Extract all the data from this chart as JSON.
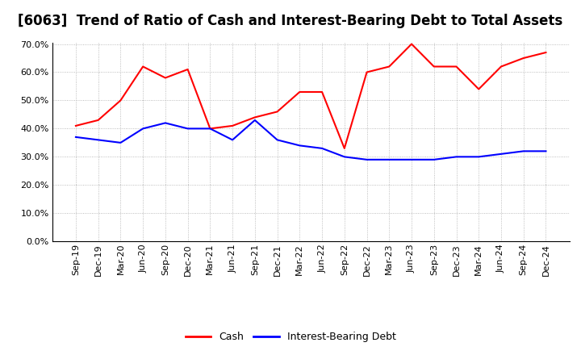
{
  "title": "[6063]  Trend of Ratio of Cash and Interest-Bearing Debt to Total Assets",
  "x_labels": [
    "Sep-19",
    "Dec-19",
    "Mar-20",
    "Jun-20",
    "Sep-20",
    "Dec-20",
    "Mar-21",
    "Jun-21",
    "Sep-21",
    "Dec-21",
    "Mar-22",
    "Jun-22",
    "Sep-22",
    "Dec-22",
    "Mar-23",
    "Jun-23",
    "Sep-23",
    "Dec-23",
    "Mar-24",
    "Jun-24",
    "Sep-24",
    "Dec-24"
  ],
  "cash": [
    0.41,
    0.43,
    0.5,
    0.62,
    0.58,
    0.61,
    0.4,
    0.41,
    0.44,
    0.46,
    0.53,
    0.53,
    0.33,
    0.6,
    0.62,
    0.7,
    0.62,
    0.62,
    0.54,
    0.62,
    0.65,
    0.67
  ],
  "ibd": [
    0.37,
    0.36,
    0.35,
    0.4,
    0.42,
    0.4,
    0.4,
    0.36,
    0.43,
    0.36,
    0.34,
    0.33,
    0.3,
    0.29,
    0.29,
    0.29,
    0.29,
    0.3,
    0.3,
    0.31,
    0.32,
    0.32
  ],
  "cash_color": "#ff0000",
  "ibd_color": "#0000ff",
  "ylim": [
    0.0,
    0.7
  ],
  "yticks": [
    0.0,
    0.1,
    0.2,
    0.3,
    0.4,
    0.5,
    0.6,
    0.7
  ],
  "background_color": "#ffffff",
  "grid_color": "#aaaaaa",
  "title_fontsize": 12,
  "tick_fontsize": 8,
  "legend_labels": [
    "Cash",
    "Interest-Bearing Debt"
  ]
}
